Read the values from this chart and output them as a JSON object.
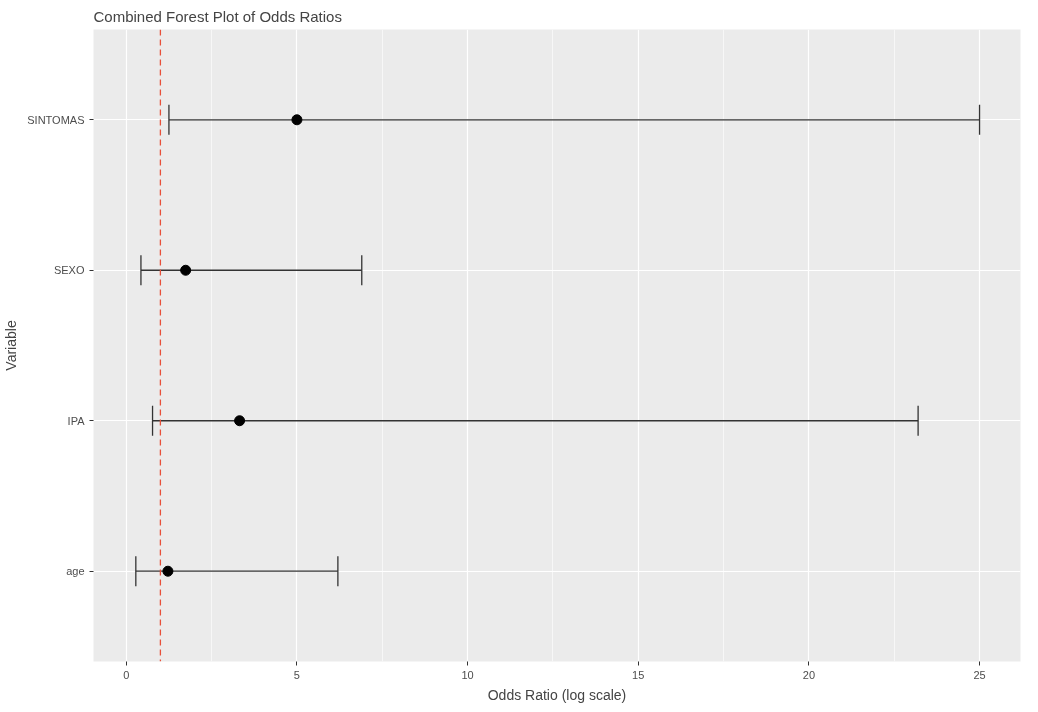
{
  "chart_data": {
    "type": "scatter",
    "title": "Combined Forest Plot of Odds Ratios",
    "xlabel": "Odds Ratio (log scale)",
    "ylabel": "Variable",
    "orientation": "horizontal",
    "categories": [
      "SINTOMAS",
      "SEXO",
      "IPA",
      "age"
    ],
    "values": [
      5.0,
      1.74,
      3.32,
      1.22
    ],
    "errors": [
      [
        1.25,
        25.0
      ],
      [
        0.43,
        6.9
      ],
      [
        0.77,
        23.2
      ],
      [
        0.28,
        6.2
      ]
    ],
    "color": "#000000",
    "marker": "circle",
    "xlim": [
      -0.96,
      26.2
    ],
    "xticks": [
      0,
      5,
      10,
      15,
      20,
      25
    ],
    "ref_lines": [
      {
        "axis": "x",
        "value": 1,
        "color": "#e8503a",
        "line_style": "dashed"
      }
    ],
    "grid": true
  }
}
